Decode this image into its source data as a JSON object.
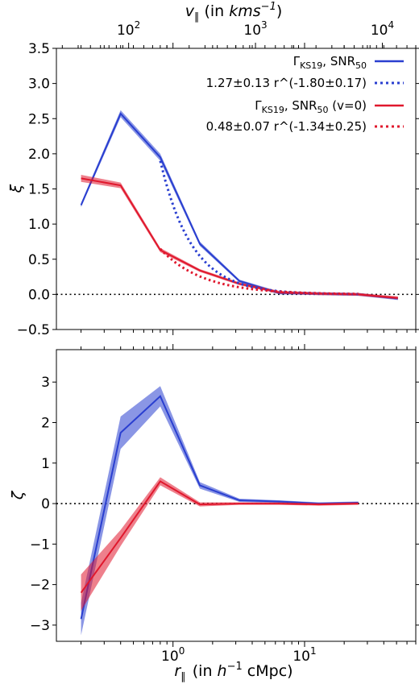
{
  "chart_data": [
    {
      "type": "line",
      "panel": "top",
      "ylabel": "ξ",
      "ylim": [
        -0.5,
        3.5
      ],
      "yticks": [
        "3.5",
        "3.0",
        "2.5",
        "2.0",
        "1.5",
        "1.0",
        "0.5",
        "0.0",
        "−0.5"
      ],
      "ytick_values": [
        3.5,
        3.0,
        2.5,
        2.0,
        1.5,
        1.0,
        0.5,
        0.0,
        -0.5
      ],
      "xscale": "log",
      "xlim": [
        0.13,
        70
      ],
      "top_axis": {
        "label": "v_∥ (in kms^-1)",
        "label_main": "v",
        "label_sub": "∥",
        "label_mid": "(in ",
        "label_unit": "kms",
        "label_sup": "−1",
        "label_end": ")",
        "scale": "log",
        "tick_values": [
          100,
          1000,
          10000
        ],
        "ticks": [
          {
            "base": "10",
            "exp": "2"
          },
          {
            "base": "10",
            "exp": "3"
          },
          {
            "base": "10",
            "exp": "4"
          }
        ]
      },
      "zero_line": {
        "y": 0,
        "style": "dotted"
      },
      "legend": {
        "placement": "top-right",
        "entries": [
          {
            "label_main": "Γ",
            "label_sub": "KS19",
            "label_mid": ", SNR",
            "label_sub2": "50",
            "label_end": "",
            "color": "#2a3fd0",
            "style": "solid"
          },
          {
            "label_main": "1.27±0.13 r^(-1.80±0.17)",
            "label_sub": "",
            "label_mid": "",
            "label_sub2": "",
            "label_end": "",
            "color": "#2a3fd0",
            "style": "dotted"
          },
          {
            "label_main": "Γ",
            "label_sub": "KS19",
            "label_mid": ", SNR",
            "label_sub2": "50",
            "label_end": " (v=0)",
            "color": "#e0182d",
            "style": "solid"
          },
          {
            "label_main": "0.48±0.07 r^(-1.34±0.25)",
            "label_sub": "",
            "label_mid": "",
            "label_sub2": "",
            "label_end": "",
            "color": "#e0182d",
            "style": "dotted"
          }
        ]
      },
      "series": [
        {
          "color": "#2a3fd0",
          "style": "solid",
          "x": [
            0.2,
            0.4,
            0.8,
            1.6,
            3.2,
            6.4,
            12.8,
            25.6,
            51.2
          ],
          "y": [
            1.27,
            2.57,
            1.95,
            0.72,
            0.19,
            0.02,
            0.01,
            0.0,
            -0.06
          ],
          "err": [
            0.03,
            0.05,
            0.05,
            0.03,
            0.02,
            0.02,
            0.02,
            0.02,
            0.02
          ]
        },
        {
          "color": "#e0182d",
          "style": "solid",
          "x": [
            0.2,
            0.4,
            0.8,
            1.6,
            3.2,
            6.4,
            12.8,
            25.6,
            51.2
          ],
          "y": [
            1.65,
            1.55,
            0.63,
            0.34,
            0.15,
            0.03,
            0.01,
            0.0,
            -0.05
          ],
          "err": [
            0.05,
            0.04,
            0.03,
            0.02,
            0.02,
            0.02,
            0.02,
            0.02,
            0.02
          ]
        },
        {
          "color": "#2a3fd0",
          "style": "dotted",
          "fit": {
            "amplitude": 1.27,
            "exponent": -1.8,
            "xmin": 0.8,
            "xmax": 25.6
          }
        },
        {
          "color": "#e0182d",
          "style": "dotted",
          "fit": {
            "amplitude": 0.48,
            "exponent": -1.34,
            "xmin": 0.8,
            "xmax": 25.6
          }
        }
      ]
    },
    {
      "type": "line",
      "panel": "bottom",
      "ylabel": "ζ",
      "ylim": [
        -3.4,
        3.8
      ],
      "yticks": [
        "3",
        "2",
        "1",
        "0",
        "−1",
        "−2",
        "−3"
      ],
      "ytick_values": [
        3,
        2,
        1,
        0,
        -1,
        -2,
        -3
      ],
      "xscale": "log",
      "xlim": [
        0.13,
        70
      ],
      "xlabel": {
        "main": "r",
        "sub": "∥",
        "mid": " (in ",
        "unit": "h",
        "sup": "−1",
        "end": " cMpc)"
      },
      "xtick_values": [
        1,
        10
      ],
      "xticks": [
        {
          "base": "10",
          "exp": "0"
        },
        {
          "base": "10",
          "exp": "1"
        }
      ],
      "zero_line": {
        "y": 0,
        "style": "dotted"
      },
      "series": [
        {
          "color": "#2a3fd0",
          "style": "solid",
          "x": [
            0.2,
            0.4,
            0.8,
            1.6,
            3.2,
            6.4,
            12.8,
            25.6
          ],
          "y": [
            -2.85,
            1.75,
            2.65,
            0.45,
            0.08,
            0.05,
            0.0,
            0.02
          ],
          "err": [
            0.4,
            0.4,
            0.25,
            0.08,
            0.04,
            0.03,
            0.03,
            0.03
          ]
        },
        {
          "color": "#e0182d",
          "style": "solid",
          "x": [
            0.2,
            0.4,
            0.8,
            1.6,
            3.2,
            6.4,
            12.8,
            25.6
          ],
          "y": [
            -2.2,
            -0.85,
            0.55,
            -0.02,
            0.0,
            0.0,
            -0.02,
            0.0
          ],
          "err": [
            0.45,
            0.2,
            0.1,
            0.05,
            0.03,
            0.03,
            0.03,
            0.03
          ]
        }
      ]
    }
  ]
}
